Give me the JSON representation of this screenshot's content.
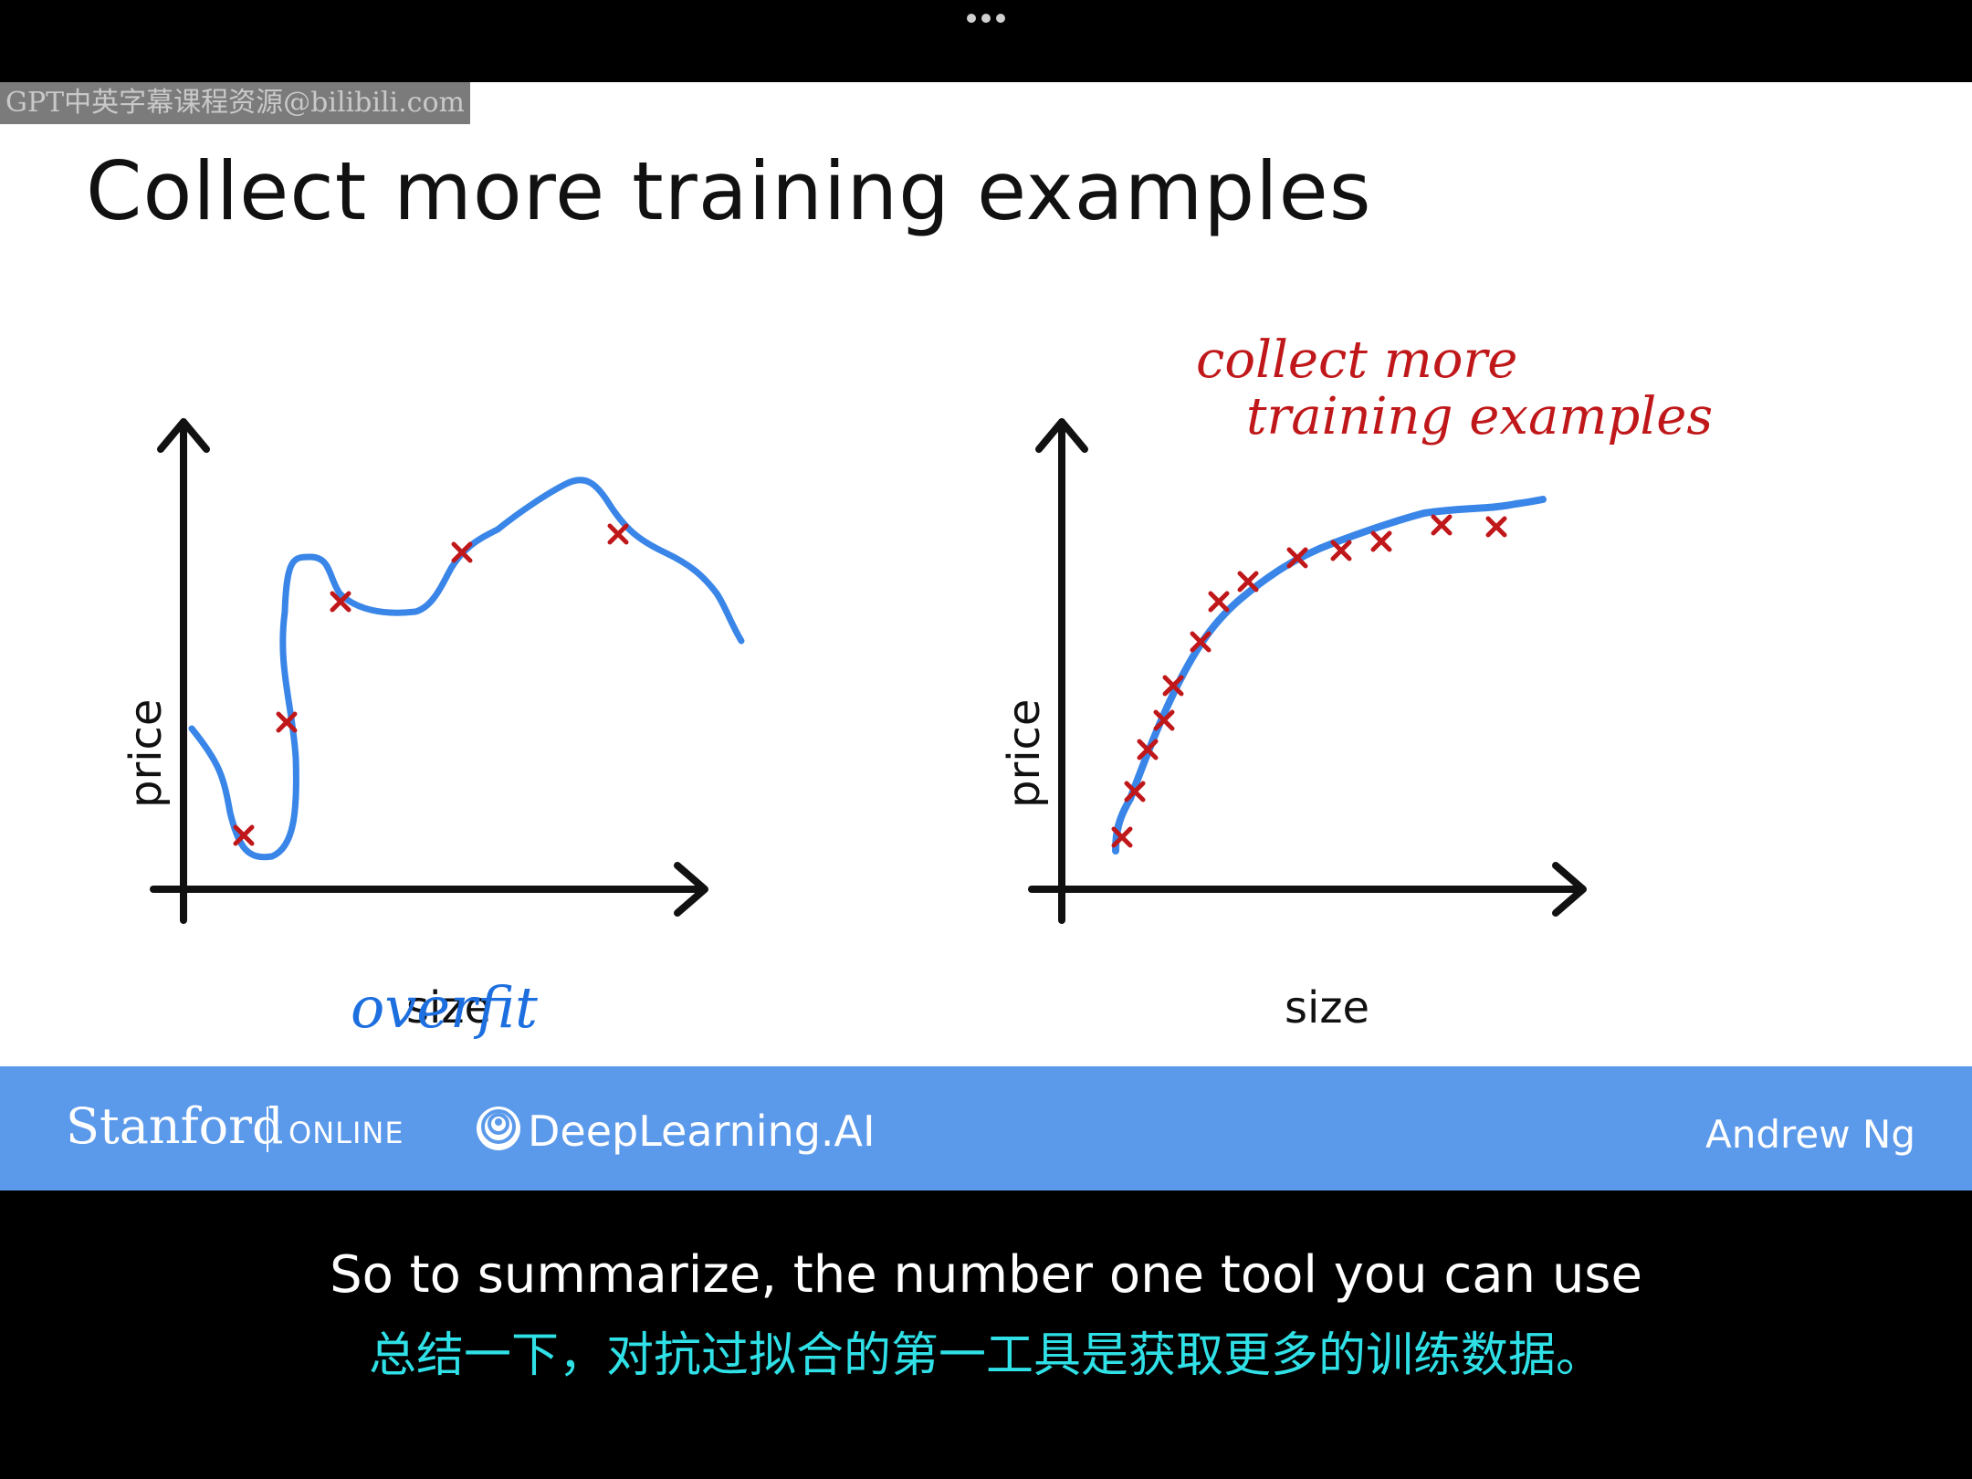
{
  "window": {
    "more_menu_icon": "more-horizontal-icon"
  },
  "watermark": "GPT中英字幕课程资源@bilibili.com",
  "slide": {
    "title": "Collect more training examples",
    "left_plot": {
      "xlabel": "size",
      "ylabel": "price",
      "annotation": "overfit"
    },
    "right_plot": {
      "xlabel": "size",
      "ylabel": "price",
      "annotation_line1": "collect more",
      "annotation_line2": "training examples"
    },
    "colors": {
      "data_marks": "#c0181a",
      "fit_curve": "#3a86e8",
      "axes": "#111111"
    }
  },
  "footer": {
    "stanford": "Stanford",
    "online": "ONLINE",
    "deeplearning": "DeepLearning.AI",
    "author": "Andrew Ng"
  },
  "captions": {
    "english": "So to summarize, the number one tool you can use",
    "chinese": "总结一下，对抗过拟合的第一工具是获取更多的训练数据。"
  }
}
